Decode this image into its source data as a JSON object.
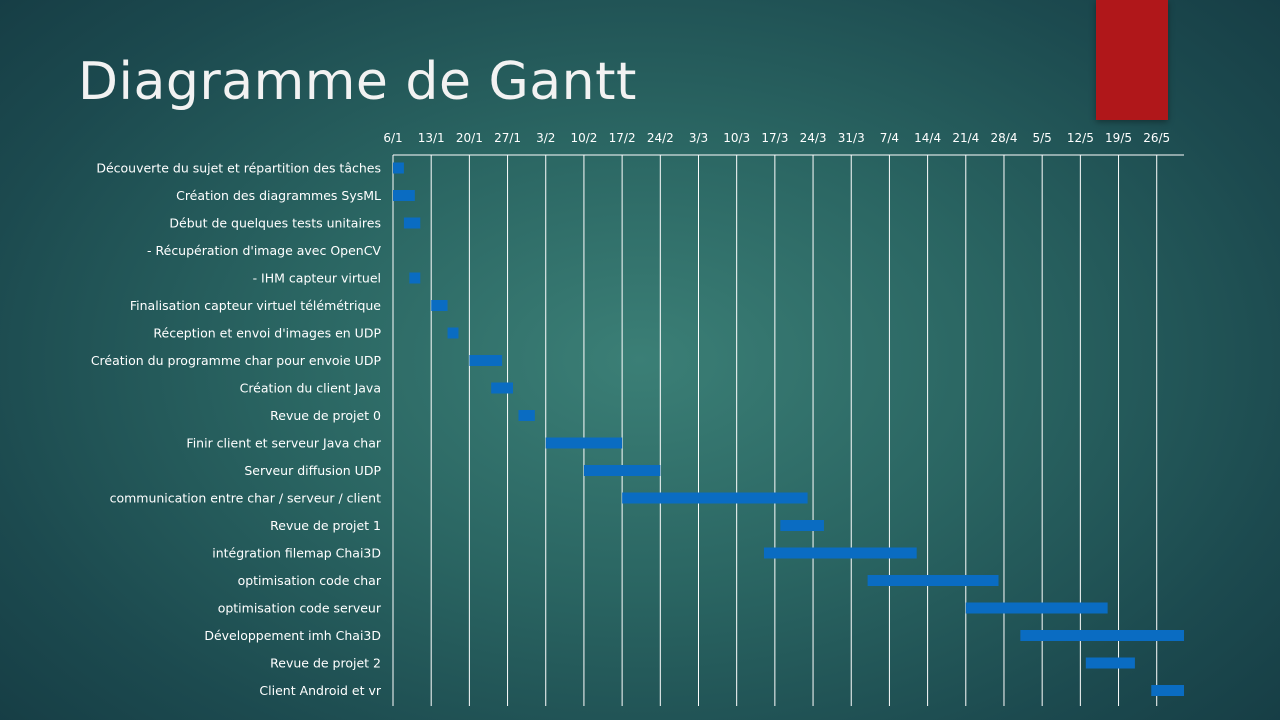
{
  "slide": {
    "title": "Diagramme de Gantt",
    "accent_color": "#b0171a"
  },
  "chart_data": {
    "type": "gantt",
    "title": "Diagramme de Gantt",
    "year": 2020,
    "bar_color": "#0a6cc2",
    "grid_color": "#ffffff",
    "grid": true,
    "x_ticks": [
      "6/1",
      "13/1",
      "20/1",
      "27/1",
      "3/2",
      "10/2",
      "17/2",
      "24/2",
      "3/3",
      "10/3",
      "17/3",
      "24/3",
      "31/3",
      "7/4",
      "14/4",
      "21/4",
      "28/4",
      "5/5",
      "12/5",
      "19/5",
      "26/5"
    ],
    "x_range": [
      "2020-01-06",
      "2020-05-30"
    ],
    "tasks": [
      {
        "name": "Découverte du sujet et répartition des tâches",
        "start": "2020-01-06",
        "end": "2020-01-08"
      },
      {
        "name": "Création des diagrammes SysML",
        "start": "2020-01-06",
        "end": "2020-01-10"
      },
      {
        "name": "Début de quelques tests unitaires",
        "start": "2020-01-08",
        "end": "2020-01-11"
      },
      {
        "name": "- Récupération d'image avec OpenCV",
        "start": "",
        "end": ""
      },
      {
        "name": "- IHM capteur virtuel",
        "start": "2020-01-09",
        "end": "2020-01-11"
      },
      {
        "name": "Finalisation capteur virtuel télémétrique",
        "start": "2020-01-13",
        "end": "2020-01-16"
      },
      {
        "name": "Réception et envoi d'images en UDP",
        "start": "2020-01-16",
        "end": "2020-01-18"
      },
      {
        "name": "Création du programme char pour envoie UDP",
        "start": "2020-01-20",
        "end": "2020-01-26"
      },
      {
        "name": "Création du client Java",
        "start": "2020-01-24",
        "end": "2020-01-28"
      },
      {
        "name": "Revue de projet 0",
        "start": "2020-01-29",
        "end": "2020-02-01"
      },
      {
        "name": "Finir client et serveur Java char",
        "start": "2020-02-03",
        "end": "2020-02-17"
      },
      {
        "name": "Serveur diffusion UDP",
        "start": "2020-02-10",
        "end": "2020-02-24"
      },
      {
        "name": "communication entre char / serveur / client",
        "start": "2020-02-17",
        "end": "2020-03-22"
      },
      {
        "name": "Revue de projet 1",
        "start": "2020-03-17",
        "end": "2020-03-25"
      },
      {
        "name": "intégration filemap Chai3D",
        "start": "2020-03-14",
        "end": "2020-04-11"
      },
      {
        "name": "optimisation code char",
        "start": "2020-04-02",
        "end": "2020-04-26"
      },
      {
        "name": "optimisation code serveur",
        "start": "2020-04-20",
        "end": "2020-05-16"
      },
      {
        "name": "Développement imh Chai3D",
        "start": "2020-04-30",
        "end": "2020-05-30"
      },
      {
        "name": "Revue de projet 2",
        "start": "2020-05-12",
        "end": "2020-05-21"
      },
      {
        "name": "Client Android et vr",
        "start": "2020-05-24",
        "end": "2020-05-30"
      }
    ]
  }
}
